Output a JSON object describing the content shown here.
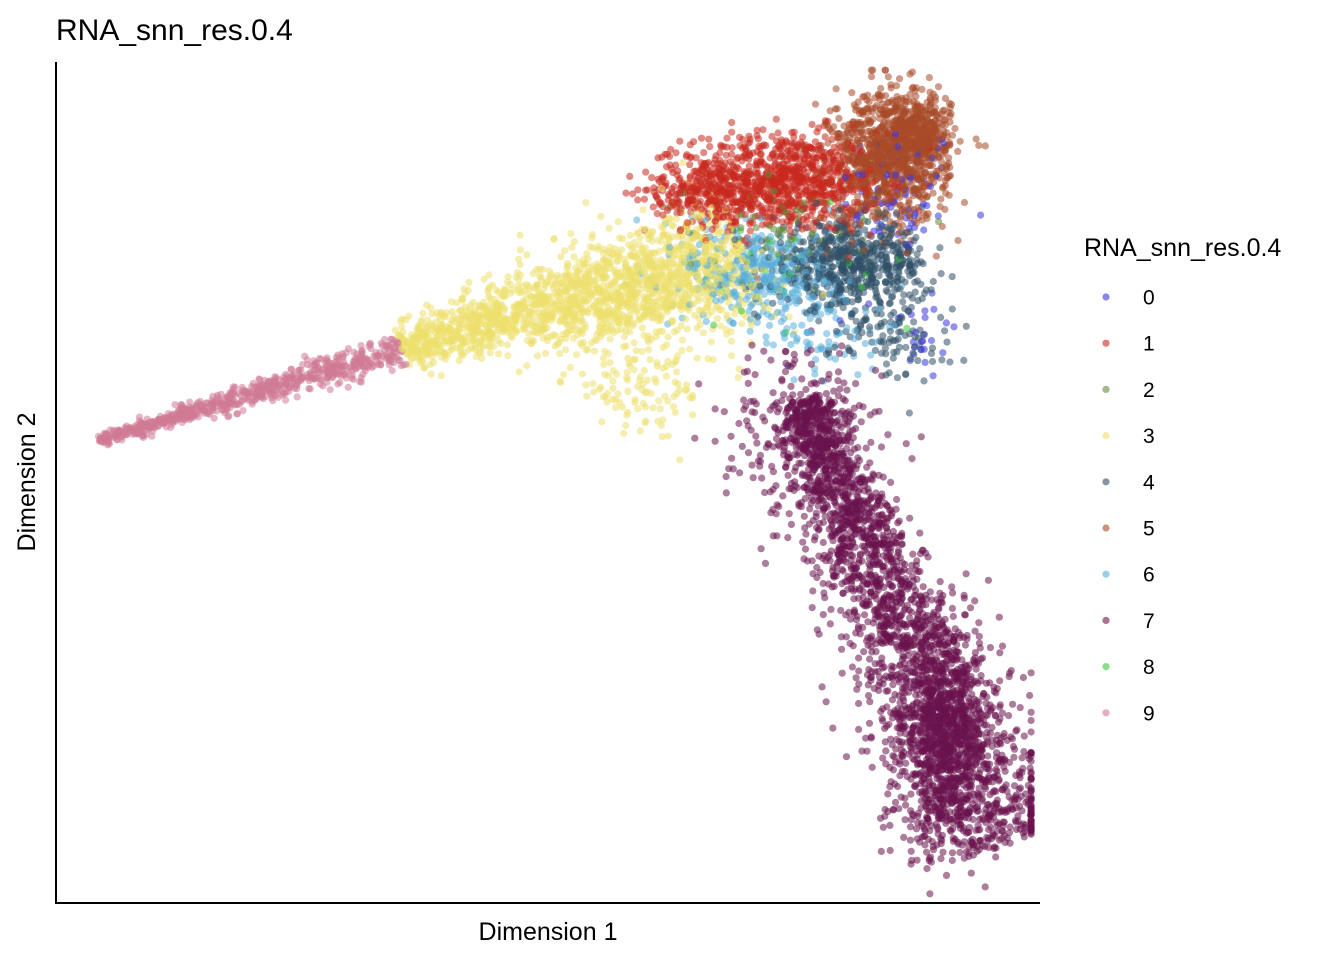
{
  "chart_data": {
    "type": "scatter",
    "title": "RNA_snn_res.0.4",
    "xlabel": "Dimension 1",
    "ylabel": "Dimension 2",
    "xlim": [
      0,
      100
    ],
    "ylim": [
      0,
      100
    ],
    "ticks_shown": false,
    "grid": false,
    "legend": {
      "title": "RNA_snn_res.0.4",
      "placement": "right"
    },
    "series": [
      {
        "name": "0",
        "color": "#3a36e0",
        "regions": [
          {
            "cx": 86,
            "cy": 85,
            "sx": 3,
            "sy": 4,
            "n": 80
          },
          {
            "cx": 88,
            "cy": 68,
            "sx": 2,
            "sy": 3,
            "n": 25
          }
        ]
      },
      {
        "name": "1",
        "color": "#c8281e",
        "regions": [
          {
            "cx": 74,
            "cy": 86,
            "sx": 5,
            "sy": 3,
            "n": 900
          },
          {
            "cx": 66,
            "cy": 85,
            "sx": 3,
            "sy": 2,
            "n": 200
          }
        ]
      },
      {
        "name": "2",
        "color": "#5f8a3a",
        "regions": [
          {
            "cx": 74,
            "cy": 80,
            "sx": 5,
            "sy": 3,
            "n": 70
          }
        ]
      },
      {
        "name": "3",
        "color": "#ece06e",
        "band": {
          "from": [
            35,
            66
          ],
          "to": [
            70,
            78
          ],
          "width": 3.8,
          "n": 1500
        },
        "regions": [
          {
            "cx": 60,
            "cy": 72,
            "sx": 6,
            "sy": 3,
            "n": 300
          },
          {
            "cx": 60,
            "cy": 62,
            "sx": 4,
            "sy": 3,
            "n": 120
          }
        ]
      },
      {
        "name": "4",
        "color": "#305068",
        "regions": [
          {
            "cx": 81,
            "cy": 76,
            "sx": 4,
            "sy": 2.5,
            "n": 600
          },
          {
            "cx": 85,
            "cy": 68,
            "sx": 3,
            "sy": 3,
            "n": 100
          }
        ]
      },
      {
        "name": "5",
        "color": "#a84a28",
        "regions": [
          {
            "cx": 85,
            "cy": 89,
            "sx": 3,
            "sy": 4,
            "n": 900
          },
          {
            "cx": 88,
            "cy": 92,
            "sx": 1.5,
            "sy": 2,
            "n": 300
          }
        ]
      },
      {
        "name": "6",
        "color": "#5aaedc",
        "regions": [
          {
            "cx": 72,
            "cy": 75,
            "sx": 4,
            "sy": 3,
            "n": 350
          },
          {
            "cx": 78,
            "cy": 68,
            "sx": 3,
            "sy": 3,
            "n": 80
          }
        ]
      },
      {
        "name": "7",
        "color": "#6a124c",
        "band": {
          "from": [
            76,
            60
          ],
          "to": [
            96,
            6
          ],
          "width": 4.5,
          "n": 2400
        },
        "regions": [
          {
            "cx": 91,
            "cy": 20,
            "sx": 2,
            "sy": 6,
            "n": 700
          },
          {
            "cx": 76,
            "cy": 55,
            "sx": 4,
            "sy": 6,
            "n": 250
          }
        ]
      },
      {
        "name": "8",
        "color": "#3cc83c",
        "regions": [
          {
            "cx": 74,
            "cy": 77,
            "sx": 5,
            "sy": 5,
            "n": 30
          }
        ]
      },
      {
        "name": "9",
        "color": "#d07a96",
        "band": {
          "from": [
            4,
            55
          ],
          "to": [
            35,
            66
          ],
          "width": 1.0,
          "n": 700
        }
      }
    ]
  }
}
